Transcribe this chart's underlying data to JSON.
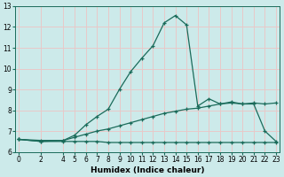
{
  "xlabel": "Humidex (Indice chaleur)",
  "bg_color": "#cceaea",
  "grid_color": "#e8c8c8",
  "line_color": "#1a6b5a",
  "line1_x": [
    0,
    2,
    4,
    5,
    6,
    7,
    8,
    9,
    10,
    11,
    12,
    13,
    14,
    15,
    16,
    17,
    18,
    19,
    20,
    21,
    22,
    23
  ],
  "line1_y": [
    6.6,
    6.55,
    6.55,
    6.8,
    7.3,
    7.7,
    8.05,
    9.0,
    9.85,
    10.5,
    11.1,
    12.2,
    12.55,
    12.1,
    8.2,
    8.55,
    8.3,
    8.4,
    8.3,
    8.35,
    8.3,
    8.35
  ],
  "line2_x": [
    0,
    2,
    4,
    5,
    6,
    7,
    8,
    9,
    10,
    11,
    12,
    13,
    14,
    15,
    16,
    17,
    18,
    19,
    20,
    21,
    22,
    23
  ],
  "line2_y": [
    6.6,
    6.5,
    6.55,
    6.7,
    6.85,
    7.0,
    7.1,
    7.25,
    7.4,
    7.55,
    7.7,
    7.85,
    7.95,
    8.05,
    8.1,
    8.2,
    8.3,
    8.35,
    8.3,
    8.3,
    7.0,
    6.5
  ],
  "line3_x": [
    0,
    2,
    4,
    5,
    6,
    7,
    8,
    9,
    10,
    11,
    12,
    13,
    14,
    15,
    16,
    17,
    18,
    19,
    20,
    21,
    22,
    23
  ],
  "line3_y": [
    6.6,
    6.5,
    6.5,
    6.5,
    6.5,
    6.5,
    6.45,
    6.45,
    6.45,
    6.45,
    6.45,
    6.45,
    6.45,
    6.45,
    6.45,
    6.45,
    6.45,
    6.45,
    6.45,
    6.45,
    6.45,
    6.45
  ],
  "xlim": [
    -0.3,
    23.3
  ],
  "ylim": [
    6,
    13
  ],
  "xticks": [
    0,
    2,
    4,
    5,
    6,
    7,
    8,
    9,
    10,
    11,
    12,
    13,
    14,
    15,
    16,
    17,
    18,
    19,
    20,
    21,
    22,
    23
  ],
  "yticks": [
    6,
    7,
    8,
    9,
    10,
    11,
    12,
    13
  ],
  "fontsize_ticks": 5.5,
  "fontsize_label": 6.5
}
